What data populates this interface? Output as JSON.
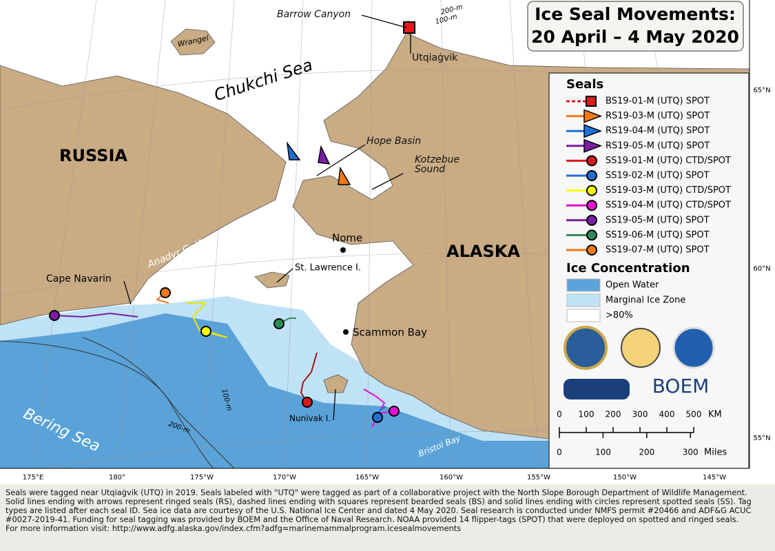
{
  "title": [
    "Ice Seal Movements:",
    "20 April – 4 May 2020"
  ],
  "map_labels": {
    "barrow_canyon": "Barrow Canyon",
    "utqiagvik": "Utqiaġvik",
    "contour_200_north": "200-m",
    "contour_100_north": "100-m",
    "wrangel": "Wrangel",
    "chukchi_sea": "Chukchi Sea",
    "russia": "RUSSIA",
    "alaska": "ALASKA",
    "hope_basin": "Hope Basin",
    "kotzebue_sound": [
      "Kotzebue",
      "Sound"
    ],
    "nome": "Nome",
    "anadyr_gulf": "Anadyr Gulf",
    "st_lawrence": "St. Lawrence I.",
    "cape_navarin": "Cape Navarin",
    "scammon_bay": "Scammon Bay",
    "nunivak": "Nunivak I.",
    "bering_sea": "Bering Sea",
    "bristol_bay": "Bristol Bay",
    "contour_100_south": "100-m",
    "contour_200_south": "200-m"
  },
  "legend": {
    "seals_heading": "Seals",
    "seals": [
      "BS19-01-M (UTQ) SPOT",
      "RS19-03-M (UTQ) SPOT",
      "RS19-04-M (UTQ) SPOT",
      "RS19-05-M (UTQ) SPOT",
      "SS19-01-M (UTQ) CTD/SPOT",
      "SS19-02-M (UTQ) SPOT",
      "SS19-03-M (UTQ) CTD/SPOT",
      "SS19-04-M (UTQ) CTD/SPOT",
      "SS19-05-M (UTQ) SPOT",
      "SS19-06-M (UTQ) SPOT",
      "SS19-07-M (UTQ) SPOT"
    ],
    "ice_heading": "Ice Concentration",
    "ice": [
      "Open Water",
      "Marginal Ice Zone",
      ">80%"
    ]
  },
  "logos": {
    "boem": "BOEM"
  },
  "scale": {
    "km_ticks": [
      0,
      100,
      200,
      300,
      400,
      500
    ],
    "km_unit": "KM",
    "mile_ticks": [
      0,
      100,
      200,
      300
    ],
    "mile_unit": "Miles"
  },
  "latitude_labels": [
    "65°N",
    "60°N",
    "55°N"
  ],
  "longitude_labels": [
    "175°E",
    "180°",
    "175°W",
    "170°W",
    "165°W",
    "160°W",
    "155°W",
    "150°W",
    "145°W"
  ],
  "footer": {
    "note": "Seals were tagged near Utqiaġvik (UTQ) in 2019. Seals labeled with \"UTQ\" were tagged as part of a collaborative project with the North Slope Borough Department of Wildlife Management. Solid lines ending with arrows represent ringed seals (RS), dashed lines ending with squares represent bearded seals (BS) and solid lines ending with circles represent spotted seals (SS). Tag types are listed after each seal ID. Sea ice data are courtesy of the U.S. National Ice Center and dated 4 May 2020. Seal research is conducted under NMFS permit #20466 and ADF&G ACUC #0027-2019-41. Funding for seal tagging was provided by BOEM and the Office of Naval Research. NOAA provided 14 flipper-tags (SPOT) that were deployed on spotted and ringed seals.",
    "more_info": "For more information visit: http://www.adfg.alaska.gov/index.cfm?adfg=marinemammalprogram.icesealmovements"
  }
}
